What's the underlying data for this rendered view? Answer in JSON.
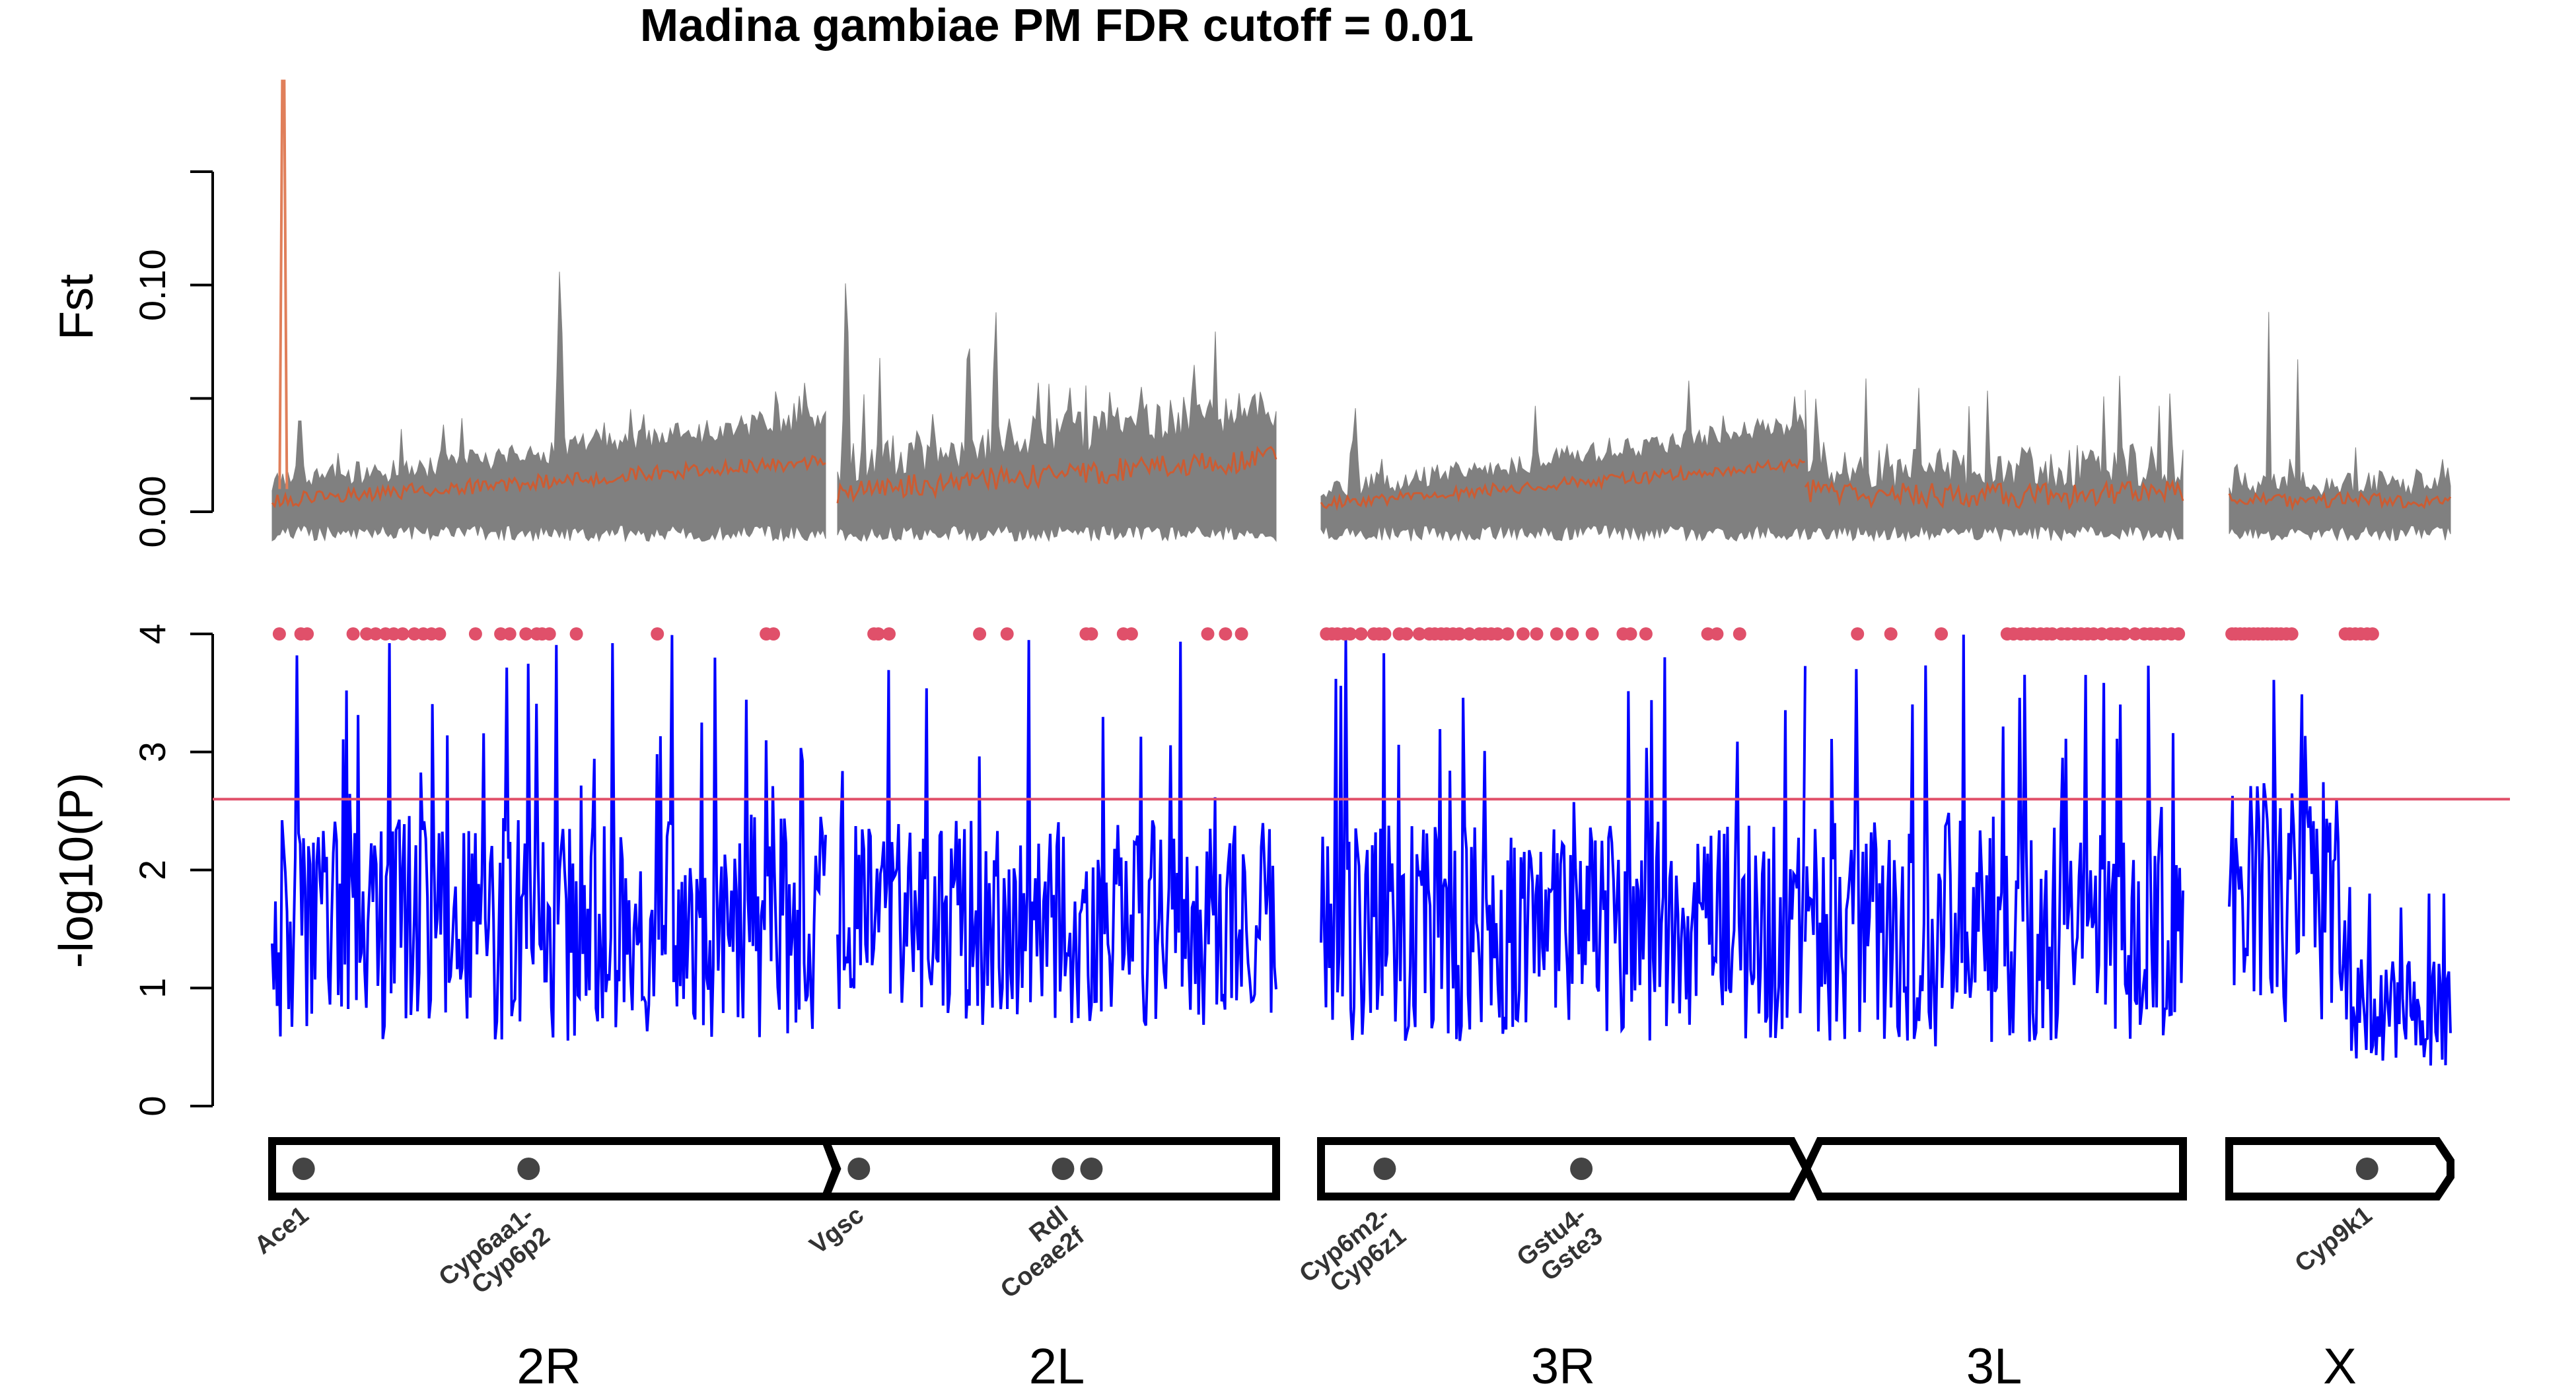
{
  "chart_data": {
    "type": "line",
    "title": "Madina gambiae PM FDR cutoff = 0.01",
    "colors": {
      "fst_background": "#808080",
      "fst_mean": "#cc5c33",
      "fst_mean_highlight": "#e07f5a",
      "pvalue_line": "#0000ff",
      "threshold_line": "#e0506a",
      "significant_points": "#e0506a",
      "gene_marker": "#444444",
      "chromosome_outline": "#000000"
    },
    "panels": [
      {
        "id": "fst",
        "ylabel": "Fst",
        "yticks": [
          "0.00",
          "0.10"
        ],
        "ylim": [
          0,
          0.15
        ],
        "series": [
          {
            "role": "per-site Fst (grey envelope)"
          },
          {
            "role": "smoothed Fst (orange)"
          }
        ],
        "peak": {
          "chromosome": "2R",
          "position_mb": 1.2,
          "value": 0.19
        }
      },
      {
        "id": "pvalue",
        "ylabel": "-log10(P)",
        "yticks": [
          "0",
          "1",
          "2",
          "3",
          "4"
        ],
        "ylim": [
          0,
          4
        ],
        "threshold": 2.6,
        "significant_value": 4
      }
    ],
    "chromosomes": [
      {
        "name": "2R",
        "length_mb": 61.5,
        "arrow": "right"
      },
      {
        "name": "2L",
        "length_mb": 49.4,
        "arrow": "none"
      },
      {
        "name": "3R",
        "length_mb": 53.2,
        "arrow": "right"
      },
      {
        "name": "3L",
        "length_mb": 41.9,
        "arrow": "none"
      },
      {
        "name": "X",
        "length_mb": 24.4,
        "arrow": "right"
      }
    ],
    "genes": [
      {
        "label": [
          "Ace1"
        ],
        "chromosome": "2R",
        "position_mb": 3.5
      },
      {
        "label": [
          "Cyp6aa1-",
          "Cyp6p2"
        ],
        "chromosome": "2R",
        "position_mb": 28.5
      },
      {
        "label": [
          "Vgsc"
        ],
        "chromosome": "2L",
        "position_mb": 2.4
      },
      {
        "label": [
          "Rdl",
          "Coeae2f"
        ],
        "chromosome": "2L",
        "position_mb": 25.4
      },
      {
        "label": [],
        "chromosome": "2L",
        "position_mb": 28.6
      },
      {
        "label": [
          "Cyp6m2-",
          "Cyp6z1"
        ],
        "chromosome": "3R",
        "position_mb": 7.0
      },
      {
        "label": [
          "Gstu4-",
          "Gste3"
        ],
        "chromosome": "3R",
        "position_mb": 28.6
      },
      {
        "label": [
          "Cyp9k1"
        ],
        "chromosome": "X",
        "position_mb": 15.2
      }
    ],
    "significant_windows_mb": {
      "2R": [
        0.8,
        3.2,
        3.9,
        9.0,
        10.5,
        11.5,
        12.6,
        13.5,
        14.5,
        15.8,
        16.8,
        17.7,
        18.6,
        22.6,
        25.4,
        26.4,
        28.2,
        29.4,
        30.0,
        30.8,
        33.8,
        42.8,
        54.9,
        55.7
      ],
      "2L": [
        4.1,
        4.6,
        5.8,
        16.0,
        19.1,
        28.0,
        28.6,
        32.2,
        33.1,
        41.7,
        43.7,
        45.5
      ],
      "3R": [
        0.6,
        1.2,
        1.8,
        2.6,
        3.2,
        4.4,
        5.8,
        6.4,
        7.0,
        8.6,
        9.4,
        10.8,
        11.9,
        12.5,
        13.2,
        13.8,
        14.5,
        15.2,
        16.3,
        17.4,
        18.0,
        18.7,
        19.4,
        20.5,
        22.2,
        23.7,
        25.9,
        27.6,
        29.8,
        33.2,
        34.0,
        35.7,
        42.5,
        43.5,
        46.0
      ],
      "3L": [
        5.8,
        9.5,
        15.1,
        22.4,
        23.1,
        23.9,
        24.6,
        25.3,
        26.1,
        26.8,
        27.4,
        28.4,
        29.1,
        29.9,
        30.6,
        31.3,
        32.0,
        32.9,
        33.9,
        34.6,
        35.4,
        36.6,
        37.6,
        38.3,
        39.0,
        39.8,
        40.6,
        41.4
      ],
      "X": [
        0.3,
        0.7,
        1.2,
        1.7,
        2.2,
        2.7,
        3.2,
        3.7,
        4.2,
        4.7,
        5.2,
        5.7,
        6.3,
        6.9,
        12.8,
        13.3,
        13.9,
        14.5,
        15.2,
        15.8
      ]
    },
    "xlabel": "",
    "legend": "none"
  }
}
